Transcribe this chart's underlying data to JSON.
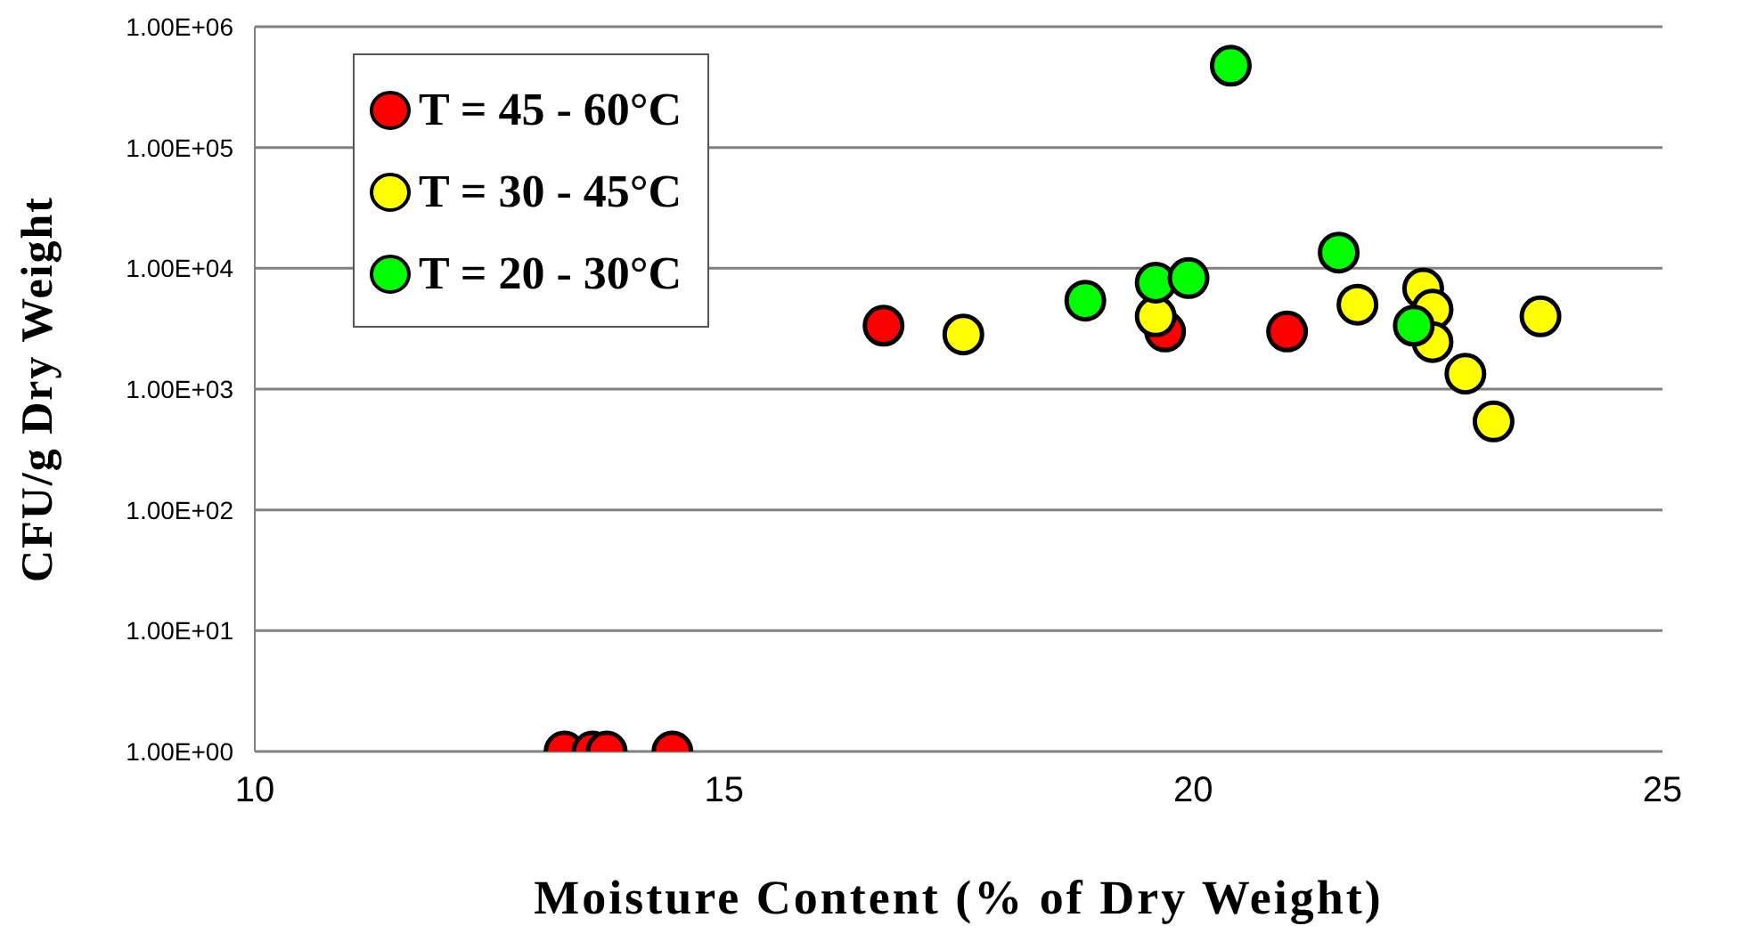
{
  "chart_data": {
    "type": "scatter",
    "xlabel": "Moisture Content (% of Dry Weight)",
    "ylabel": "CFU/g Dry Weight",
    "log": "y",
    "grid": "y",
    "legend": "top left",
    "marker": "circle",
    "xlim": [
      10,
      25
    ],
    "xticks": [
      10,
      15,
      20,
      25
    ],
    "ylim": [
      1,
      1000000
    ],
    "yticks": [
      {
        "value": 1,
        "label": "1.00E+00"
      },
      {
        "value": 10,
        "label": "1.00E+01"
      },
      {
        "value": 100,
        "label": "1.00E+02"
      },
      {
        "value": 1000,
        "label": "1.00E+03"
      },
      {
        "value": 10000,
        "label": "1.00E+04"
      },
      {
        "value": 100000,
        "label": "1.00E+05"
      },
      {
        "value": 1000000,
        "label": "1.00E+06"
      }
    ],
    "series": [
      {
        "name": "T = 45 - 60°C",
        "color": "#ff0000",
        "x": [
          13.3,
          13.6,
          13.75,
          14.45,
          16.7,
          19.7,
          21.0
        ],
        "values": [
          1,
          1,
          1,
          1,
          3350,
          3000,
          3000
        ]
      },
      {
        "name": "T = 30 - 45°C",
        "color": "#ffff00",
        "x": [
          17.55,
          19.6,
          21.75,
          22.45,
          22.55,
          22.55,
          22.9,
          23.2,
          23.7
        ],
        "values": [
          2830,
          4000,
          5000,
          6800,
          4550,
          2450,
          1340,
          540,
          4000
        ]
      },
      {
        "name": "T = 20 - 30°C",
        "color": "#00ff00",
        "x": [
          20.4,
          18.85,
          19.6,
          19.95,
          21.55,
          22.35
        ],
        "values": [
          475000,
          5400,
          7600,
          8300,
          13500,
          3350
        ]
      }
    ]
  }
}
